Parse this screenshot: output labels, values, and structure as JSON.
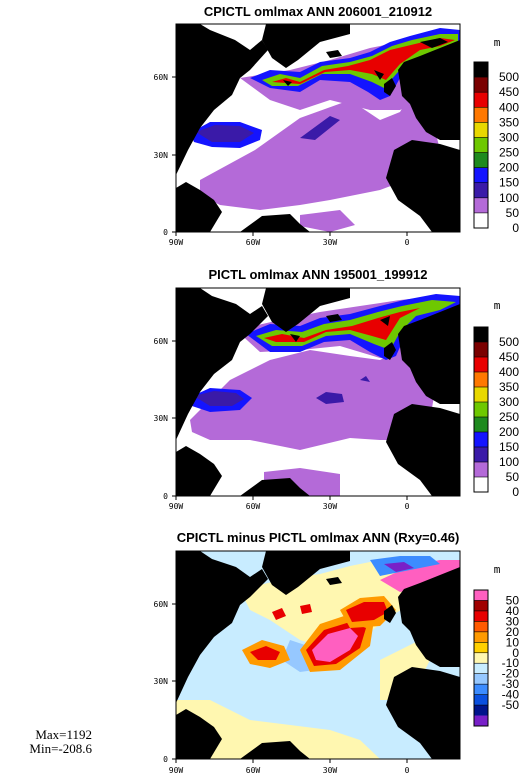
{
  "figure": {
    "max_label": "Max=1192",
    "min_label": "Min=-208.6"
  },
  "chart_data": [
    {
      "type": "heatmap",
      "title": "CPICTL omlmax ANN 206001_210912",
      "unit": "m",
      "x_ticks": [
        "90W",
        "60W",
        "30W",
        "0"
      ],
      "y_ticks": [
        "60N",
        "30N",
        "0"
      ],
      "xlim": [
        -90,
        20
      ],
      "ylim": [
        0,
        80
      ],
      "colorbar": {
        "labels": [
          "500",
          "450",
          "400",
          "350",
          "300",
          "250",
          "200",
          "150",
          "100",
          "50",
          "0"
        ],
        "colors": [
          "#000000",
          "#7a0000",
          "#e80000",
          "#ff7800",
          "#e8d800",
          "#6ec800",
          "#1e8a1e",
          "#1414ff",
          "#3a1aa8",
          "#b46ad8",
          "#ffffff"
        ]
      }
    },
    {
      "type": "heatmap",
      "title": "PICTL omlmax ANN 195001_199912",
      "unit": "m",
      "x_ticks": [
        "90W",
        "60W",
        "30W",
        "0"
      ],
      "y_ticks": [
        "60N",
        "30N",
        "0"
      ],
      "xlim": [
        -90,
        20
      ],
      "ylim": [
        0,
        80
      ],
      "colorbar": {
        "labels": [
          "500",
          "450",
          "400",
          "350",
          "300",
          "250",
          "200",
          "150",
          "100",
          "50",
          "0"
        ],
        "colors": [
          "#000000",
          "#7a0000",
          "#e80000",
          "#ff7800",
          "#e8d800",
          "#6ec800",
          "#1e8a1e",
          "#1414ff",
          "#3a1aa8",
          "#b46ad8",
          "#ffffff"
        ]
      }
    },
    {
      "type": "heatmap",
      "title": "CPICTL minus PICTL omlmax ANN (Rxy=0.46)",
      "unit": "m",
      "x_ticks": [
        "90W",
        "60W",
        "30W",
        "0"
      ],
      "y_ticks": [
        "60N",
        "30N",
        "0"
      ],
      "xlim": [
        -90,
        20
      ],
      "ylim": [
        0,
        80
      ],
      "colorbar": {
        "labels": [
          "50",
          "40",
          "30",
          "20",
          "10",
          "0",
          "-10",
          "-20",
          "-30",
          "-40",
          "-50"
        ],
        "colors": [
          "#ff5fc0",
          "#a00000",
          "#e80000",
          "#ff5a00",
          "#ff9a00",
          "#ffd000",
          "#fff7b0",
          "#c8ecff",
          "#96c8ff",
          "#3c8cff",
          "#0a50e0",
          "#00148c",
          "#7820c8"
        ]
      }
    }
  ]
}
